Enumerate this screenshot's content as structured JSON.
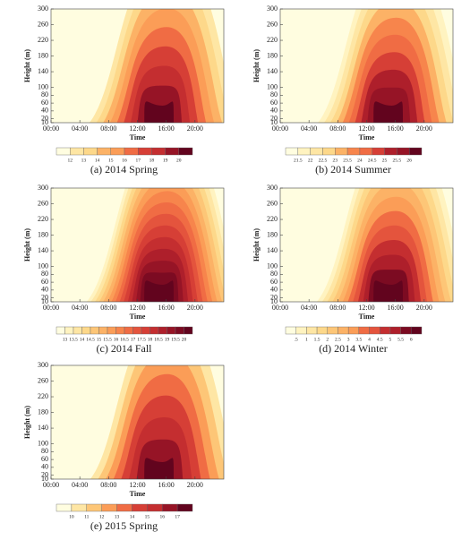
{
  "chart_data": [
    {
      "type": "contour",
      "caption": "(a) 2014 Spring",
      "xlabel": "Time",
      "ylabel": "Height (m)",
      "xlim": [
        0,
        24
      ],
      "xticks": [
        {
          "value": 0,
          "label": "00:00"
        },
        {
          "value": 4,
          "label": "04:00"
        },
        {
          "value": 8,
          "label": "08:00"
        },
        {
          "value": 12,
          "label": "12:00"
        },
        {
          "value": 16,
          "label": "16:00"
        },
        {
          "value": 20,
          "label": "20:00"
        }
      ],
      "ylim": [
        10,
        300
      ],
      "yticks": [
        10,
        20,
        40,
        60,
        80,
        100,
        140,
        180,
        220,
        260,
        300
      ],
      "colorbar_ticks": [
        12,
        13,
        14,
        15,
        16,
        17,
        18,
        19,
        20
      ],
      "colors": [
        "#fffde0",
        "#fee6a4",
        "#fdd88a",
        "#fcb266",
        "#fb9d57",
        "#f06c44",
        "#d63f36",
        "#c42e30",
        "#961426",
        "#62041e"
      ]
    },
    {
      "type": "contour",
      "caption": "(b) 2014 Summer",
      "xlabel": "Time",
      "ylabel": "Height (m)",
      "xlim": [
        0,
        24
      ],
      "xticks": [
        {
          "value": 0,
          "label": "00:00"
        },
        {
          "value": 4,
          "label": "04:00"
        },
        {
          "value": 8,
          "label": "08:00"
        },
        {
          "value": 12,
          "label": "12:00"
        },
        {
          "value": 16,
          "label": "16:00"
        },
        {
          "value": 20,
          "label": "20:00"
        }
      ],
      "ylim": [
        10,
        300
      ],
      "yticks": [
        10,
        20,
        40,
        60,
        80,
        100,
        140,
        180,
        220,
        260,
        300
      ],
      "colorbar_ticks": [
        21.5,
        22,
        22.5,
        23,
        23.5,
        24,
        24.5,
        25,
        25.5,
        26
      ],
      "colors": [
        "#fffde0",
        "#fff3c0",
        "#fee6a4",
        "#fdd88a",
        "#fcb266",
        "#f7854c",
        "#f06c44",
        "#d63f36",
        "#ae1f2b",
        "#961426",
        "#62041e"
      ]
    },
    {
      "type": "contour",
      "caption": "(c) 2014 Fall",
      "xlabel": "Time",
      "ylabel": "Height (m)",
      "xlim": [
        0,
        24
      ],
      "xticks": [
        {
          "value": 0,
          "label": "00:00"
        },
        {
          "value": 4,
          "label": "04:00"
        },
        {
          "value": 8,
          "label": "08:00"
        },
        {
          "value": 12,
          "label": "12:00"
        },
        {
          "value": 16,
          "label": "16:00"
        },
        {
          "value": 20,
          "label": "20:00"
        }
      ],
      "ylim": [
        10,
        300
      ],
      "yticks": [
        10,
        20,
        40,
        60,
        80,
        100,
        140,
        180,
        220,
        260,
        300
      ],
      "colorbar_ticks": [
        13,
        13.5,
        14,
        14.5,
        15,
        15.5,
        16,
        16.5,
        17,
        17.5,
        18,
        18.5,
        19,
        19.5,
        20
      ],
      "colors": [
        "#fffde0",
        "#fff3c0",
        "#fee6a4",
        "#fdd88a",
        "#fdc677",
        "#fcb266",
        "#fb9d57",
        "#f7854c",
        "#f06c44",
        "#e4543d",
        "#d63f36",
        "#c42e30",
        "#ae1f2b",
        "#961426",
        "#7c0b22",
        "#62041e"
      ]
    },
    {
      "type": "contour",
      "caption": "(d) 2014 Winter",
      "xlabel": "Time",
      "ylabel": "Height (m)",
      "xlim": [
        0,
        24
      ],
      "xticks": [
        {
          "value": 0,
          "label": "00:00"
        },
        {
          "value": 4,
          "label": "04:00"
        },
        {
          "value": 8,
          "label": "08:00"
        },
        {
          "value": 12,
          "label": "12:00"
        },
        {
          "value": 16,
          "label": "16:00"
        },
        {
          "value": 20,
          "label": "20:00"
        }
      ],
      "ylim": [
        10,
        300
      ],
      "yticks": [
        10,
        20,
        40,
        60,
        80,
        100,
        140,
        180,
        220,
        260,
        300
      ],
      "colorbar_ticks": [
        {
          "value": 0.5,
          "label": ".5"
        },
        1,
        1.5,
        2,
        2.5,
        3,
        3.5,
        4,
        4.5,
        5,
        5.5,
        6
      ],
      "colors": [
        "#fffde0",
        "#fff3c0",
        "#fee6a4",
        "#fdd88a",
        "#fdc677",
        "#fcb266",
        "#fb9d57",
        "#f06c44",
        "#e4543d",
        "#c42e30",
        "#ae1f2b",
        "#7c0b22",
        "#62041e"
      ]
    },
    {
      "type": "contour",
      "caption": "(e) 2015 Spring",
      "xlabel": "Time",
      "ylabel": "Height (m)",
      "xlim": [
        0,
        24
      ],
      "xticks": [
        {
          "value": 0,
          "label": "00:00"
        },
        {
          "value": 4,
          "label": "04:00"
        },
        {
          "value": 8,
          "label": "08:00"
        },
        {
          "value": 12,
          "label": "12:00"
        },
        {
          "value": 16,
          "label": "16:00"
        },
        {
          "value": 20,
          "label": "20:00"
        }
      ],
      "ylim": [
        10,
        300
      ],
      "yticks": [
        10,
        20,
        40,
        60,
        80,
        100,
        140,
        180,
        220,
        260,
        300
      ],
      "colorbar_ticks": [
        10,
        11,
        12,
        13,
        14,
        15,
        16,
        17
      ],
      "colors": [
        "#fffde0",
        "#fee6a4",
        "#fdc677",
        "#fb9d57",
        "#f06c44",
        "#d63f36",
        "#c42e30",
        "#961426",
        "#62041e"
      ]
    }
  ]
}
